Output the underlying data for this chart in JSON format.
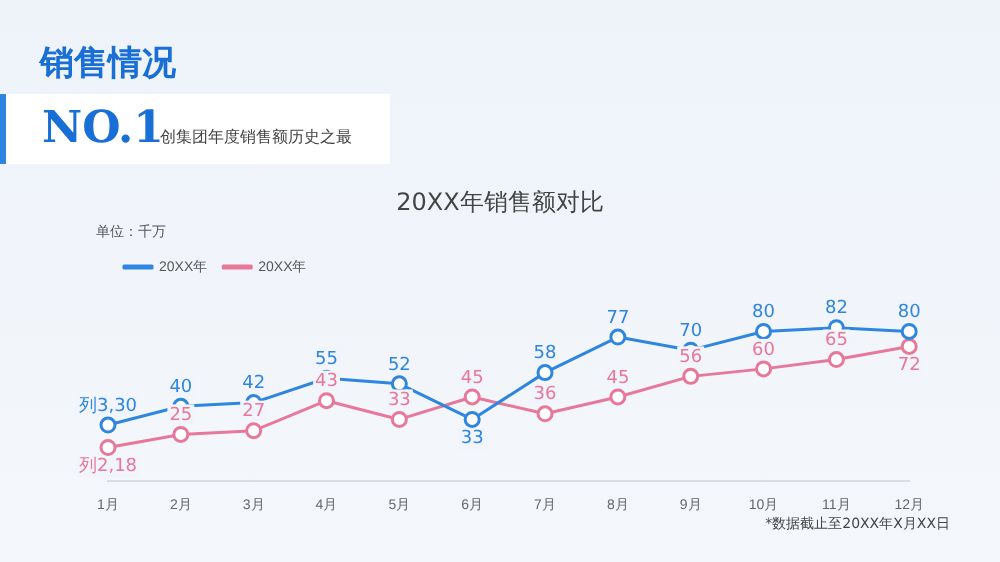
{
  "chart_data": {
    "type": "line",
    "title": "20XX年销售额对比",
    "annotations": [
      "销售情况",
      "NO.1",
      "创集团年度销售额历史之最",
      "单位：千万",
      "*数据截止至20XX年X月XX日"
    ],
    "categories": [
      "1月",
      "2月",
      "3月",
      "4月",
      "5月",
      "6月",
      "7月",
      "8月",
      "9月",
      "10月",
      "11月",
      "12月"
    ],
    "series": [
      {
        "name": "20XX年",
        "color": "#2f86e0",
        "values": [
          30,
          40,
          42,
          55,
          52,
          33,
          58,
          77,
          70,
          80,
          82,
          80
        ],
        "value_labels": [
          "列3,30",
          "40",
          "42",
          "55",
          "52",
          "33",
          "58",
          "77",
          "70",
          "80",
          "82",
          "80"
        ]
      },
      {
        "name": "20XX年",
        "color": "#e8789a",
        "values": [
          18,
          25,
          27,
          43,
          33,
          45,
          36,
          45,
          56,
          60,
          65,
          72
        ],
        "value_labels": [
          "列2,18",
          "25",
          "27",
          "43",
          "33",
          "45",
          "36",
          "45",
          "56",
          "60",
          "65",
          "72"
        ]
      }
    ],
    "tick_labels": "x",
    "legend": "top left",
    "marker": "circle",
    "line_style": "solid"
  }
}
